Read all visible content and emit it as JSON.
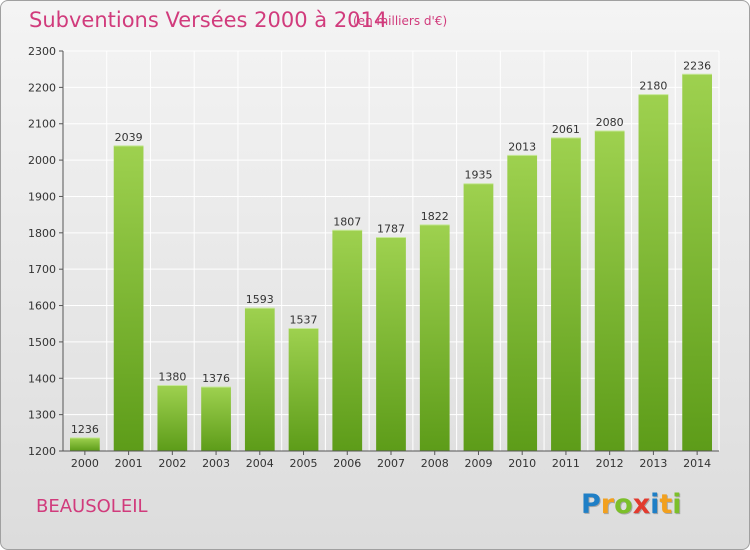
{
  "header": {
    "title": "Subventions Versées 2000 à 2014",
    "unit_note": "(en milliers d'€)"
  },
  "commune": "BEAUSOLEIL",
  "logo": {
    "text": "Proxiti",
    "letters": [
      {
        "ch": "P",
        "color": "#1f7fc6"
      },
      {
        "ch": "r",
        "color": "#f2a01e"
      },
      {
        "ch": "o",
        "color": "#7cbf2a"
      },
      {
        "ch": "x",
        "color": "#e23a2e"
      },
      {
        "ch": "i",
        "color": "#1f7fc6"
      },
      {
        "ch": "t",
        "color": "#f2a01e"
      },
      {
        "ch": "i",
        "color": "#7cbf2a"
      }
    ]
  },
  "colors": {
    "title": "#d13b7c",
    "bar_light": "#9ed14f",
    "bar_dark": "#5d9c19",
    "grid": "#ffffff",
    "axis_text": "#333333"
  },
  "chart_data": {
    "type": "bar",
    "title": "Subventions Versées 2000 à 2014",
    "subtitle": "(en milliers d'€)",
    "categories": [
      "2000",
      "2001",
      "2002",
      "2003",
      "2004",
      "2005",
      "2006",
      "2007",
      "2008",
      "2009",
      "2010",
      "2011",
      "2012",
      "2013",
      "2014"
    ],
    "values": [
      1236,
      2039,
      1380,
      1376,
      1593,
      1537,
      1807,
      1787,
      1822,
      1935,
      2013,
      2061,
      2080,
      2180,
      2236
    ],
    "xlabel": "",
    "ylabel": "",
    "ylim": [
      1200,
      2300
    ],
    "yticks": [
      1200,
      1300,
      1400,
      1500,
      1600,
      1700,
      1800,
      1900,
      2000,
      2100,
      2200,
      2300
    ],
    "grid": true,
    "data_labels": true
  }
}
